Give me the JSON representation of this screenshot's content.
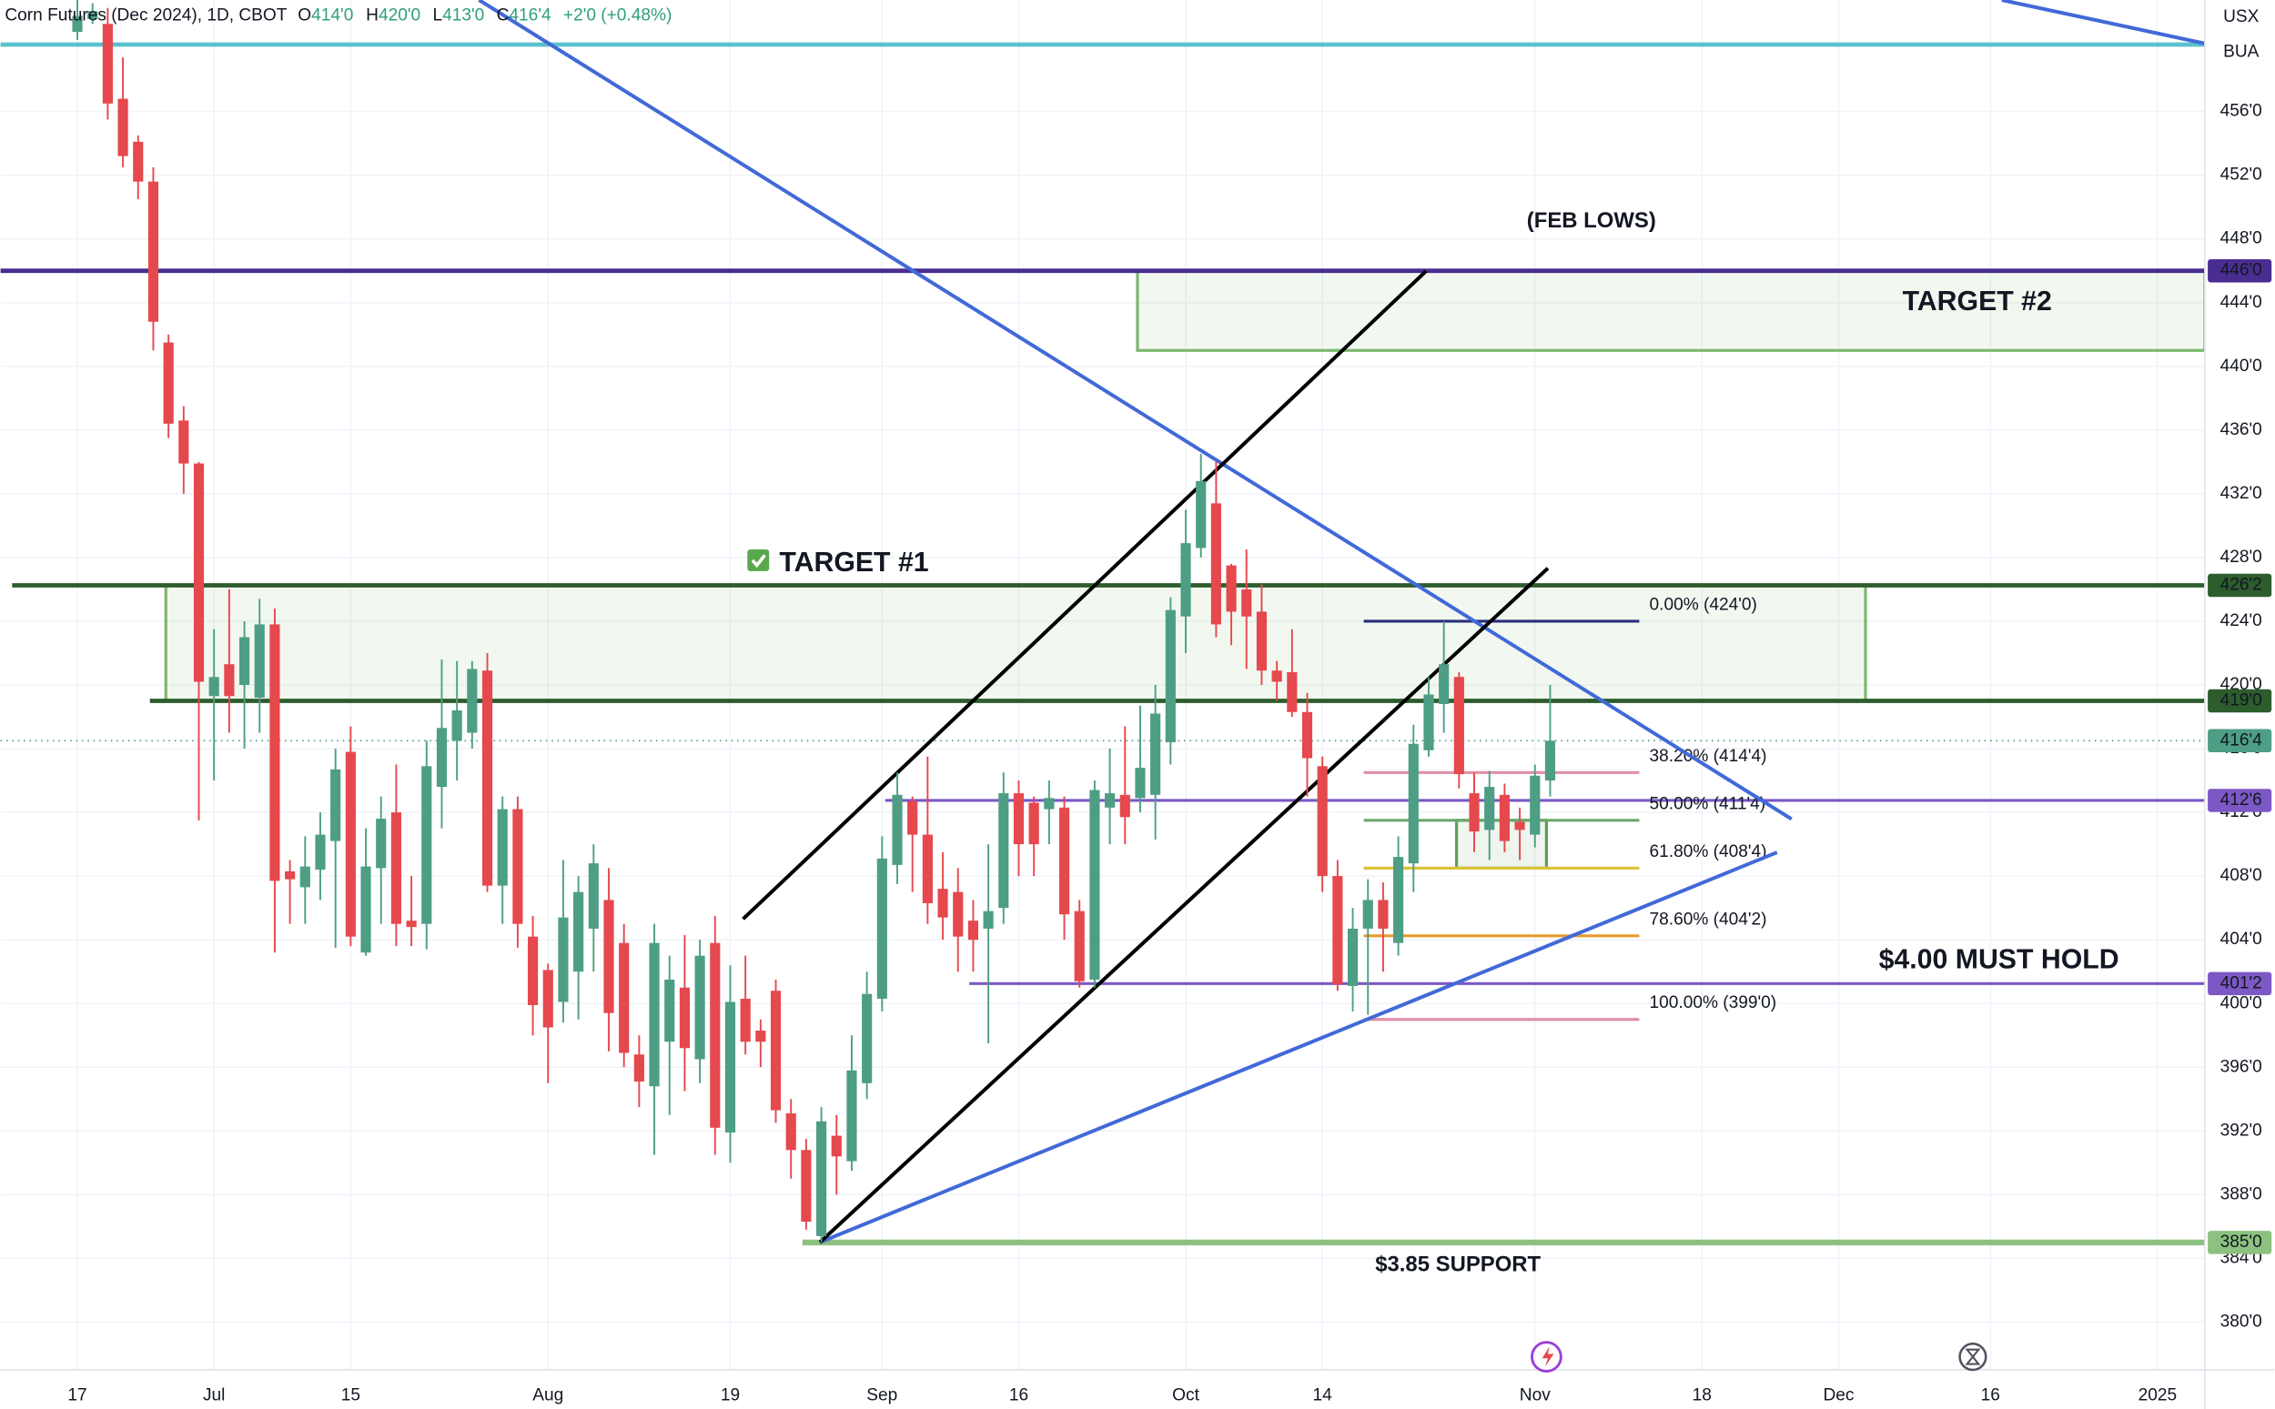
{
  "header": {
    "symbol": "Corn Futures (Dec 2024), 1D, CBOT",
    "ohlc": [
      {
        "label": "O",
        "value": "414'0"
      },
      {
        "label": "H",
        "value": "420'0"
      },
      {
        "label": "L",
        "value": "413'0"
      },
      {
        "label": "C",
        "value": "416'4"
      }
    ],
    "change": "+2'0 (+0.48%)",
    "currency": "USX",
    "unit": "BUA"
  },
  "chart_data": {
    "type": "candlestick",
    "up_color": "#4d9e85",
    "down_color": "#e5484d",
    "open": [
      461,
      461.8,
      461.5,
      456.8,
      454.1,
      451.6,
      441.5,
      436.6,
      433.9,
      419.3,
      421.3,
      420,
      419.2,
      423.8,
      408.3,
      407.3,
      408.4,
      410.2,
      415.8,
      403.2,
      408.5,
      412,
      405.2,
      405,
      413.6,
      416.5,
      417,
      420.9,
      407.4,
      412.2,
      404.2,
      402.1,
      400.1,
      402,
      404.7,
      406.5,
      403.8,
      396.8,
      394.8,
      397.6,
      401,
      396.5,
      403.8,
      391.9,
      400.3,
      398.3,
      400.8,
      393.1,
      390.8,
      385.4,
      391.7,
      390.1,
      395,
      400.3,
      408.7,
      412.7,
      410.6,
      407.2,
      407,
      405.2,
      404.7,
      406,
      413.2,
      412.6,
      412.2,
      412.3,
      405.8,
      401.5,
      412.3,
      413.1,
      412.9,
      413.1,
      416.4,
      424.3,
      428.6,
      431.4,
      427.5,
      426,
      424.6,
      420.9,
      420.8,
      418.3,
      414.9,
      408,
      401.1,
      404.7,
      406.5,
      403.8,
      408.8,
      415.9,
      418.8,
      420.5,
      413.2,
      410.9,
      413.1,
      411.4,
      410.6,
      414
    ],
    "high": [
      463,
      462.8,
      462.5,
      459.4,
      454.5,
      452.5,
      442,
      437.5,
      434,
      423.5,
      426,
      424,
      425.4,
      424.8,
      409,
      410.5,
      412,
      416,
      417.4,
      411,
      413,
      415,
      408,
      416.5,
      421.6,
      421.5,
      421.5,
      422,
      413,
      413,
      405.5,
      402.5,
      409,
      408,
      410,
      408.5,
      405,
      398,
      405,
      403,
      404.3,
      404,
      405.5,
      402.4,
      403,
      399,
      401.5,
      394,
      391.5,
      393.5,
      393,
      398,
      402,
      410.5,
      414.5,
      413,
      415.5,
      409.5,
      408.5,
      406.5,
      410,
      414.5,
      414,
      413,
      414,
      413,
      406.5,
      414,
      416,
      417.4,
      418.7,
      420,
      425.5,
      431,
      434.5,
      434,
      427.6,
      428.5,
      426.3,
      421.5,
      423.5,
      419.5,
      415.5,
      409,
      406,
      407.8,
      407.6,
      410.5,
      417.5,
      420.5,
      424,
      420.8,
      414.5,
      414.6,
      413.8,
      412.3,
      415,
      420
    ],
    "low": [
      460.5,
      461.5,
      455.5,
      452.5,
      450.5,
      441,
      435.5,
      432,
      411.5,
      414,
      417,
      416,
      417,
      403.2,
      405,
      405,
      406.5,
      403.5,
      403.6,
      403,
      405,
      403.6,
      403.6,
      403.4,
      411,
      414,
      416,
      407,
      405,
      403.5,
      398,
      395,
      398.8,
      399,
      402,
      397,
      396,
      393.5,
      390.5,
      393,
      394.5,
      395,
      390.5,
      390,
      396.8,
      396,
      392.5,
      389,
      385.8,
      385,
      388,
      389.5,
      394,
      399.5,
      407.5,
      407,
      405,
      404,
      402,
      402,
      397.5,
      405,
      408,
      408,
      410,
      404,
      401,
      401,
      410,
      410,
      412,
      410.3,
      415,
      422,
      428,
      423,
      422.5,
      421,
      420,
      419,
      418,
      413,
      407,
      400.8,
      399.5,
      399.3,
      402,
      403,
      407,
      415.5,
      417,
      413.5,
      409.5,
      409,
      409.5,
      409,
      409.8,
      413
    ],
    "close": [
      462,
      462.3,
      456.5,
      453.2,
      451.6,
      442.8,
      436.4,
      433.9,
      420.2,
      420.5,
      419.3,
      423,
      423.8,
      407.7,
      407.8,
      408.6,
      410.6,
      414.7,
      404.2,
      408.6,
      411.6,
      405,
      404.8,
      414.9,
      417.3,
      418.4,
      421,
      407.4,
      412.2,
      405,
      399.9,
      398.5,
      405.4,
      407,
      408.8,
      399.4,
      396.9,
      395.1,
      403.8,
      401.5,
      397.2,
      403,
      392.2,
      400.1,
      397.6,
      397.6,
      393.3,
      390.8,
      386.3,
      392.6,
      390.4,
      395.8,
      400.6,
      409.1,
      413.1,
      410.6,
      406.3,
      405.4,
      404.2,
      404,
      405.8,
      413.2,
      410,
      410,
      412.9,
      405.6,
      401.4,
      413.4,
      413.2,
      411.7,
      414.8,
      418.2,
      424.7,
      428.9,
      432.8,
      423.8,
      424.6,
      424.3,
      420.9,
      420.2,
      418.3,
      415.4,
      408,
      401.2,
      404.7,
      406.5,
      404.7,
      409.2,
      416.3,
      419.4,
      421.3,
      414.4,
      410.8,
      413.6,
      410.2,
      410.9,
      414.3,
      416.5
    ],
    "xlim": [
      -5.06,
      140.12
    ],
    "xticks": [
      {
        "value": 0,
        "label": "17"
      },
      {
        "value": 9,
        "label": "Jul"
      },
      {
        "value": 18,
        "label": "15"
      },
      {
        "value": 31,
        "label": "Aug"
      },
      {
        "value": 43,
        "label": "19"
      },
      {
        "value": 53,
        "label": "Sep"
      },
      {
        "value": 62,
        "label": "16"
      },
      {
        "value": 73,
        "label": "Oct"
      },
      {
        "value": 82,
        "label": "14"
      },
      {
        "value": 96,
        "label": "Nov"
      },
      {
        "value": 107,
        "label": "18"
      },
      {
        "value": 116,
        "label": "Dec"
      },
      {
        "value": 126,
        "label": "16"
      },
      {
        "value": 137,
        "label": "2025"
      }
    ],
    "ylim": [
      377,
      463
    ],
    "yticks": [
      {
        "value": 380,
        "label": "380'0"
      },
      {
        "value": 384,
        "label": "384'0"
      },
      {
        "value": 388,
        "label": "388'0"
      },
      {
        "value": 392,
        "label": "392'0"
      },
      {
        "value": 396,
        "label": "396'0"
      },
      {
        "value": 400,
        "label": "400'0"
      },
      {
        "value": 404,
        "label": "404'0"
      },
      {
        "value": 408,
        "label": "408'0"
      },
      {
        "value": 412,
        "label": "412'0"
      },
      {
        "value": 416,
        "label": "416'0"
      },
      {
        "value": 420,
        "label": "420'0"
      },
      {
        "value": 424,
        "label": "424'0"
      },
      {
        "value": 428,
        "label": "428'0"
      },
      {
        "value": 432,
        "label": "432'0"
      },
      {
        "value": 436,
        "label": "436'0"
      },
      {
        "value": 440,
        "label": "440'0"
      },
      {
        "value": 444,
        "label": "444'0"
      },
      {
        "value": 448,
        "label": "448'0"
      },
      {
        "value": 452,
        "label": "452'0"
      },
      {
        "value": 456,
        "label": "456'0"
      }
    ],
    "grid": true,
    "last": {
      "value": 416.5,
      "label": "416'4",
      "color": "#4d9e85"
    },
    "levels": [
      {
        "value": 460.2,
        "color": "#5bc0cf"
      },
      {
        "value": 446,
        "label": "446'0",
        "color": "#4a2d91"
      },
      {
        "value": 426.25,
        "label": "426'2",
        "color": "#2d5c2d"
      },
      {
        "value": 419,
        "label": "419'0",
        "color": "#2d5c2d"
      },
      {
        "value": 412.75,
        "label": "412'6",
        "color": "#7b58c4"
      },
      {
        "value": 401.25,
        "label": "401'2",
        "color": "#7b58c4"
      },
      {
        "value": 385,
        "label": "385'0",
        "color": "#8cc17f"
      }
    ],
    "zones": [
      {
        "top": 446,
        "bottom": 441,
        "color": "#7cb86e"
      },
      {
        "top": 426.25,
        "bottom": 419,
        "color": "#7cb86e"
      },
      {
        "top": 411.5,
        "bottom": 408.5,
        "color": "#5f9e55"
      }
    ],
    "fib": [
      {
        "value": 424,
        "label": "0.00% (424'0)",
        "color": "#2a2e7a"
      },
      {
        "value": 414.5,
        "label": "38.20% (414'4)",
        "color": "#e08fa8"
      },
      {
        "value": 411.5,
        "label": "50.00% (411'4)",
        "color": "#6aa86a"
      },
      {
        "value": 408.5,
        "label": "61.80% (408'4)",
        "color": "#d8c43a"
      },
      {
        "value": 404.25,
        "label": "78.60% (404'2)",
        "color": "#e89a2e"
      },
      {
        "value": 399,
        "label": "100.00% (399'0)",
        "color": "#e08fa8"
      }
    ],
    "annotations": [
      "(FEB LOWS)",
      "TARGET #2",
      "TARGET #1",
      "$4.00 MUST HOLD",
      "$3.85 SUPPORT"
    ]
  }
}
